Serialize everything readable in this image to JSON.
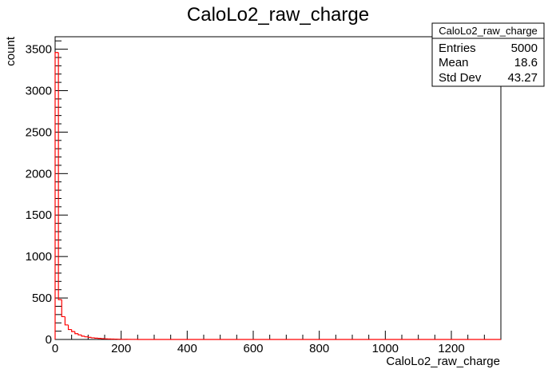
{
  "chart_data": {
    "type": "bar",
    "title": "CaloLo2_raw_charge",
    "xlabel": "CaloLo2_raw_charge",
    "ylabel": "count",
    "xlim": [
      0,
      1350
    ],
    "ylim": [
      0,
      3650
    ],
    "x_ticks": [
      0,
      200,
      400,
      600,
      800,
      1000,
      1200
    ],
    "y_ticks": [
      0,
      500,
      1000,
      1500,
      2000,
      2500,
      3000,
      3500
    ],
    "bin_width": 10,
    "bins": [
      {
        "x": 0,
        "value": 3460
      },
      {
        "x": 10,
        "value": 480
      },
      {
        "x": 20,
        "value": 275
      },
      {
        "x": 30,
        "value": 175
      },
      {
        "x": 40,
        "value": 120
      },
      {
        "x": 50,
        "value": 95
      },
      {
        "x": 60,
        "value": 70
      },
      {
        "x": 70,
        "value": 55
      },
      {
        "x": 80,
        "value": 40
      },
      {
        "x": 90,
        "value": 32
      },
      {
        "x": 100,
        "value": 25
      },
      {
        "x": 110,
        "value": 20
      },
      {
        "x": 120,
        "value": 16
      },
      {
        "x": 130,
        "value": 13
      },
      {
        "x": 140,
        "value": 10
      },
      {
        "x": 150,
        "value": 8
      },
      {
        "x": 160,
        "value": 6
      },
      {
        "x": 170,
        "value": 5
      },
      {
        "x": 180,
        "value": 4
      },
      {
        "x": 190,
        "value": 3
      },
      {
        "x": 200,
        "value": 2
      },
      {
        "x": 210,
        "value": 2
      },
      {
        "x": 220,
        "value": 1
      },
      {
        "x": 230,
        "value": 1
      },
      {
        "x": 240,
        "value": 1
      }
    ],
    "stats": {
      "name": "CaloLo2_raw_charge",
      "rows": [
        {
          "label": "Entries",
          "value": "5000"
        },
        {
          "label": "Mean",
          "value": "18.6"
        },
        {
          "label": "Std Dev",
          "value": "43.27"
        }
      ]
    },
    "colors": {
      "line": "#ff0000",
      "axis": "#000000",
      "background": "#ffffff"
    }
  }
}
